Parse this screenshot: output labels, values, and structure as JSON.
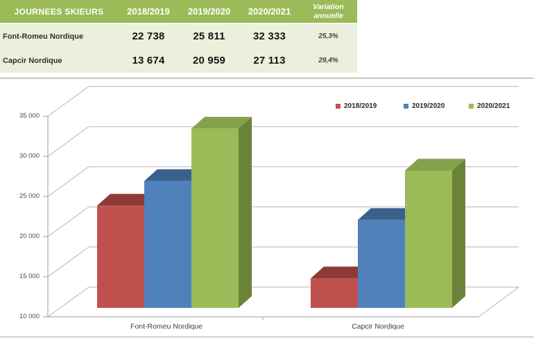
{
  "table": {
    "header": [
      "JOURNEES SKIEURS",
      "2018/2019",
      "2019/2020",
      "2020/2021",
      "Variation annuelle"
    ],
    "rows": [
      {
        "label": "Font-Romeu Nordique",
        "values": [
          "22 738",
          "25 811",
          "32 333"
        ],
        "variation": "25,3%"
      },
      {
        "label": "Capcir Nordique",
        "values": [
          "13 674",
          "20 959",
          "27 113"
        ],
        "variation": "29,4%"
      }
    ],
    "colors": {
      "header_bg": "#9bbb59",
      "header_text": "#ffffff",
      "body_bg": "#ebf0dc"
    }
  },
  "chart_data": {
    "type": "bar",
    "style": "3d-clustered",
    "title": "",
    "categories": [
      "Font-Romeu Nordique",
      "Capcir Nordique"
    ],
    "series": [
      {
        "name": "2018/2019",
        "values": [
          22738,
          13674
        ],
        "color": "#c0504d",
        "color_top": "#8e3a37",
        "color_side": "#9c4340"
      },
      {
        "name": "2019/2020",
        "values": [
          25811,
          20959
        ],
        "color": "#4f81bd",
        "color_top": "#3a618c",
        "color_side": "#44699c"
      },
      {
        "name": "2020/2021",
        "values": [
          32333,
          27113
        ],
        "color": "#9bbb59",
        "color_top": "#85a14b",
        "color_side": "#6b8339"
      }
    ],
    "ylim": [
      10000,
      35000
    ],
    "ytick_step": 5000,
    "ytick_labels": [
      "10 000",
      "15 000",
      "20 000",
      "25 000",
      "30 000",
      "35 000"
    ],
    "grid": true,
    "legend_position": "top-right",
    "grid_color": "#b3b3b3",
    "axis_color": "#9a9a9a"
  }
}
